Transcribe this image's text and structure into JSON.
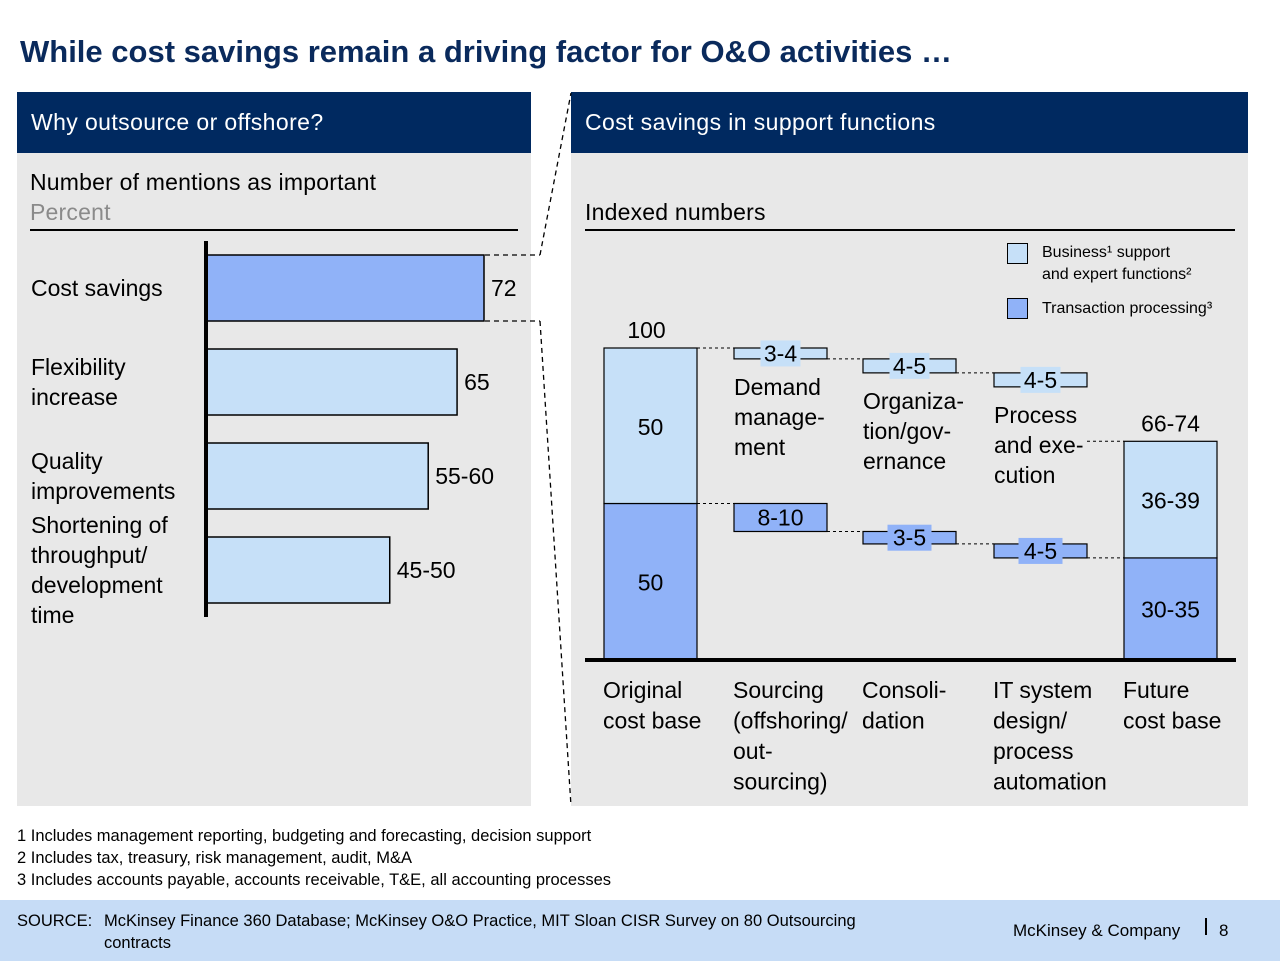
{
  "title": "While cost savings remain a driving factor for O&O activities …",
  "left_panel": {
    "header": "Why outsource or offshore?",
    "subtitle": "Number of mentions as important",
    "unit": "Percent"
  },
  "right_panel": {
    "header": "Cost savings in support functions",
    "subtitle": "Indexed numbers",
    "legend": {
      "business_line1": "Business¹ support",
      "business_line2": "and expert functions²",
      "transaction": "Transaction processing³"
    }
  },
  "colors": {
    "navy": "#002960",
    "light_blue": "#c6e0f8",
    "mid_blue": "#90b2f8",
    "panel_gray": "#e8e8e8"
  },
  "chart_data": [
    {
      "type": "bar",
      "orientation": "horizontal",
      "categories": [
        [
          "Cost savings"
        ],
        [
          "Flexibility",
          "increase"
        ],
        [
          "Quality",
          "improvements"
        ],
        [
          "Shortening of",
          "throughput/",
          "development",
          "time"
        ]
      ],
      "values": [
        72,
        65,
        57.5,
        47.5
      ],
      "labels": [
        "72",
        "65",
        "55-60",
        "45-50"
      ],
      "highlight_index": 0,
      "xlim": [
        0,
        100
      ]
    },
    {
      "type": "waterfall",
      "ylim": [
        0,
        100
      ],
      "categories": [
        [
          "Original",
          "cost base"
        ],
        [
          "Sourcing",
          "(offshoring/",
          "out-",
          "sourcing)"
        ],
        [
          "Consoli-",
          "dation"
        ],
        [
          "IT system",
          "design/",
          "process",
          "automation"
        ],
        [
          "Future",
          "cost base"
        ]
      ],
      "start": {
        "total": 100,
        "total_label": "100",
        "business": 50,
        "business_label": "50",
        "transaction": 50,
        "transaction_label": "50"
      },
      "steps": [
        {
          "business": 3.5,
          "business_label": "3-4",
          "transaction": 9,
          "transaction_label": "8-10",
          "note": [
            "Demand",
            "manage-",
            "ment"
          ]
        },
        {
          "business": 4.5,
          "business_label": "4-5",
          "transaction": 4,
          "transaction_label": "3-5",
          "note": [
            "Organiza-",
            "tion/gov-",
            "ernance"
          ]
        },
        {
          "business": 4.5,
          "business_label": "4-5",
          "transaction": 4.5,
          "transaction_label": "4-5",
          "note": [
            "Process",
            "and exe-",
            "cution"
          ]
        }
      ],
      "end": {
        "total": 70,
        "total_label": "66-74",
        "business": 37.5,
        "business_label": "36-39",
        "transaction": 32.5,
        "transaction_label": "30-35"
      }
    }
  ],
  "footnotes": [
    "1 Includes management reporting, budgeting and forecasting, decision support",
    "2 Includes tax, treasury, risk management, audit, M&A",
    "3 Includes accounts payable, accounts receivable, T&E, all accounting processes"
  ],
  "source": {
    "label": "SOURCE:",
    "line1": "McKinsey Finance 360 Database; McKinsey O&O Practice, MIT Sloan CISR Survey on 80 Outsourcing",
    "line2": "contracts"
  },
  "branding": {
    "company": "McKinsey & Company",
    "page_number": "8"
  }
}
